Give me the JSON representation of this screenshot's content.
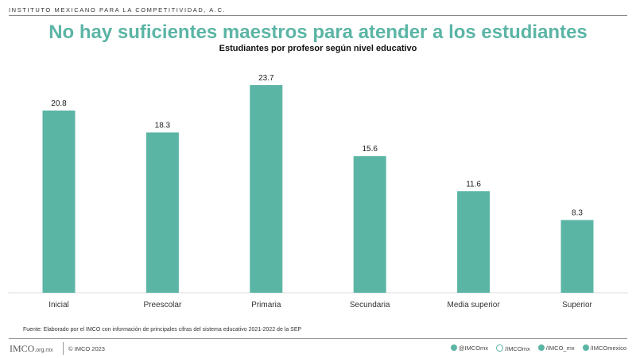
{
  "header": {
    "org": "INSTITUTO MEXICANO PARA LA COMPETITIVIDAD, A.C."
  },
  "chart_data": {
    "type": "bar",
    "title": "No hay suficientes maestros para atender a los estudiantes",
    "subtitle": "Estudiantes por profesor según nivel educativo",
    "categories": [
      "Inicial",
      "Preescolar",
      "Primaria",
      "Secundaria",
      "Media superior",
      "Superior"
    ],
    "values": [
      20.8,
      18.3,
      23.7,
      15.6,
      11.6,
      8.3
    ],
    "value_labels": [
      "20.8",
      "18.3",
      "23.7",
      "15.6",
      "11.6",
      "8.3"
    ],
    "ylim": [
      0,
      25
    ],
    "bar_color": "#5bb5a5",
    "grid": false,
    "xlabel": "",
    "ylabel": ""
  },
  "footer": {
    "source": "Fuente: Elaborado por el IMCO con información de principales cifras del sistema educativo 2021-2022 de la SEP",
    "logo": "IMCO",
    "logo_domain": ".org.mx",
    "copyright": "© IMCO 2023",
    "socials": [
      {
        "icon": "twitter-icon",
        "label": "@IMCOmx"
      },
      {
        "icon": "facebook-icon",
        "label": "/IMCOmx"
      },
      {
        "icon": "instagram-icon",
        "label": "/IMCO_mx"
      },
      {
        "icon": "youtube-icon",
        "label": "/IMCOmexico"
      }
    ]
  }
}
